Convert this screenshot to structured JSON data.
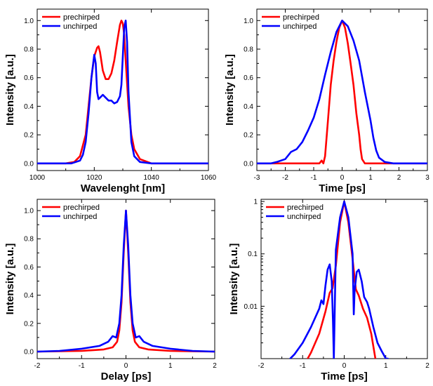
{
  "colors": {
    "prechirped": "#ff0000",
    "unchirped": "#0000ff"
  },
  "chart_data": [
    {
      "id": "spectrum",
      "type": "line",
      "xlabel": "Wavelenght [nm]",
      "ylabel": "Intensity [a.u.]",
      "xlim": [
        1000,
        1060
      ],
      "ylim": [
        -0.05,
        1.08
      ],
      "xticks": [
        1000,
        1020,
        1040,
        1060
      ],
      "xtick_labels": [
        "1000",
        "1020",
        "1040",
        "1060"
      ],
      "yticks": [
        0,
        0.2,
        0.4,
        0.6,
        0.8,
        1
      ],
      "ytick_labels": [
        "0.0",
        "0.2",
        "0.4",
        "0.6",
        "0.8",
        "1.0"
      ],
      "yscale": "linear",
      "legend_position": "top-left",
      "series": [
        {
          "name": "prechirped",
          "color": "#ff0000",
          "x": [
            1000,
            1010,
            1013,
            1015,
            1017,
            1018,
            1019,
            1020,
            1021,
            1021.5,
            1022,
            1023,
            1024,
            1025,
            1026,
            1027,
            1028,
            1029,
            1029.5,
            1030,
            1030.5,
            1031,
            1032,
            1033,
            1034,
            1036,
            1040,
            1060
          ],
          "y": [
            0,
            0,
            0.01,
            0.05,
            0.2,
            0.4,
            0.6,
            0.75,
            0.81,
            0.82,
            0.78,
            0.65,
            0.59,
            0.59,
            0.63,
            0.72,
            0.85,
            0.97,
            1.0,
            0.98,
            0.9,
            0.72,
            0.4,
            0.2,
            0.1,
            0.03,
            0,
            0
          ]
        },
        {
          "name": "unchirped",
          "color": "#0000ff",
          "x": [
            1000,
            1012,
            1015,
            1016,
            1017,
            1018,
            1019,
            1020,
            1020.5,
            1021,
            1021.5,
            1022,
            1023,
            1024,
            1025,
            1026,
            1027,
            1028,
            1029,
            1029.5,
            1030,
            1030.5,
            1031,
            1031.5,
            1032,
            1033,
            1034,
            1036,
            1040,
            1060
          ],
          "y": [
            0,
            0,
            0.02,
            0.06,
            0.15,
            0.35,
            0.6,
            0.76,
            0.7,
            0.5,
            0.45,
            0.46,
            0.48,
            0.46,
            0.44,
            0.44,
            0.42,
            0.43,
            0.47,
            0.55,
            0.75,
            0.95,
            1.0,
            0.85,
            0.5,
            0.15,
            0.05,
            0.01,
            0,
            0
          ]
        }
      ]
    },
    {
      "id": "pulse-time",
      "type": "line",
      "xlabel": "Time [ps]",
      "ylabel": "Intensity [a.u.]",
      "xlim": [
        -3,
        3
      ],
      "ylim": [
        -0.05,
        1.08
      ],
      "xticks": [
        -3,
        -2,
        -1,
        0,
        1,
        2,
        3
      ],
      "xtick_labels": [
        "-3",
        "-2",
        "-1",
        "0",
        "1",
        "2",
        "3"
      ],
      "yticks": [
        0,
        0.2,
        0.4,
        0.6,
        0.8,
        1
      ],
      "ytick_labels": [
        "0.0",
        "0.2",
        "0.4",
        "0.6",
        "0.8",
        "1.0"
      ],
      "yscale": "linear",
      "legend_position": "top-left",
      "series": [
        {
          "name": "prechirped",
          "color": "#ff0000",
          "x": [
            -3,
            -1,
            -0.8,
            -0.72,
            -0.66,
            -0.6,
            -0.5,
            -0.4,
            -0.3,
            -0.2,
            -0.1,
            0,
            0.1,
            0.2,
            0.3,
            0.4,
            0.5,
            0.6,
            0.65,
            0.7,
            0.8,
            1,
            3
          ],
          "y": [
            0,
            0,
            0,
            0.02,
            0,
            0.05,
            0.3,
            0.55,
            0.72,
            0.85,
            0.95,
            1.0,
            0.95,
            0.84,
            0.7,
            0.55,
            0.35,
            0.2,
            0.1,
            0.03,
            0,
            0,
            0
          ]
        },
        {
          "name": "unchirped",
          "color": "#0000ff",
          "x": [
            -3,
            -2.5,
            -2.3,
            -2.0,
            -1.8,
            -1.6,
            -1.4,
            -1.2,
            -1.0,
            -0.8,
            -0.6,
            -0.4,
            -0.2,
            0,
            0.2,
            0.4,
            0.6,
            0.8,
            1.0,
            1.1,
            1.2,
            1.3,
            1.5,
            1.8,
            3
          ],
          "y": [
            0,
            0,
            0.01,
            0.03,
            0.08,
            0.1,
            0.15,
            0.23,
            0.32,
            0.45,
            0.62,
            0.78,
            0.92,
            1.0,
            0.96,
            0.86,
            0.72,
            0.5,
            0.3,
            0.18,
            0.09,
            0.04,
            0.01,
            0,
            0
          ]
        }
      ]
    },
    {
      "id": "autocorrelation",
      "type": "line",
      "xlabel": "Delay [ps]",
      "ylabel": "Intensity [a.u.]",
      "xlim": [
        -2,
        2
      ],
      "ylim": [
        -0.05,
        1.08
      ],
      "xticks": [
        -2,
        -1,
        0,
        1,
        2
      ],
      "xtick_labels": [
        "-2",
        "-1",
        "0",
        "1",
        "2"
      ],
      "yticks": [
        0,
        0.2,
        0.4,
        0.6,
        0.8,
        1
      ],
      "ytick_labels": [
        "0.0",
        "0.2",
        "0.4",
        "0.6",
        "0.8",
        "1.0"
      ],
      "yscale": "linear",
      "legend_position": "top-left",
      "series": [
        {
          "name": "prechirped",
          "color": "#ff0000",
          "x": [
            -2,
            -1,
            -0.5,
            -0.3,
            -0.2,
            -0.15,
            -0.1,
            -0.05,
            0,
            0.05,
            0.1,
            0.15,
            0.2,
            0.3,
            0.5,
            1,
            2
          ],
          "y": [
            0,
            0.005,
            0.015,
            0.03,
            0.07,
            0.15,
            0.35,
            0.7,
            1.0,
            0.7,
            0.35,
            0.15,
            0.07,
            0.03,
            0.015,
            0.005,
            0
          ]
        },
        {
          "name": "unchirped",
          "color": "#0000ff",
          "x": [
            -2,
            -1.5,
            -1,
            -0.6,
            -0.4,
            -0.3,
            -0.22,
            -0.15,
            -0.1,
            -0.05,
            0,
            0.05,
            0.1,
            0.15,
            0.22,
            0.3,
            0.4,
            0.6,
            1,
            1.5,
            2
          ],
          "y": [
            0,
            0.005,
            0.02,
            0.04,
            0.07,
            0.11,
            0.1,
            0.2,
            0.4,
            0.75,
            1.0,
            0.75,
            0.4,
            0.2,
            0.1,
            0.11,
            0.07,
            0.04,
            0.02,
            0.005,
            0
          ]
        }
      ]
    },
    {
      "id": "pulse-time-log",
      "type": "line",
      "xlabel": "Time [ps]",
      "ylabel": "Intensity [a.u.]",
      "xlim": [
        -2,
        2
      ],
      "ylim": [
        0.001,
        1.1
      ],
      "xticks": [
        -2,
        -1,
        0,
        1,
        2
      ],
      "xtick_labels": [
        "-2",
        "-1",
        "0",
        "1",
        "2"
      ],
      "yticks": [
        0.01,
        0.1,
        1
      ],
      "ytick_labels": [
        "0.01",
        "0.1",
        "1"
      ],
      "yscale": "log",
      "legend_position": "top-left",
      "series": [
        {
          "name": "prechirped",
          "color": "#ff0000",
          "x": [
            -0.88,
            -0.8,
            -0.6,
            -0.45,
            -0.35,
            -0.28,
            -0.2,
            -0.1,
            0,
            0.1,
            0.2,
            0.28,
            0.35,
            0.45,
            0.55,
            0.65,
            0.75
          ],
          "y": [
            0.001,
            0.0013,
            0.003,
            0.008,
            0.018,
            0.022,
            0.06,
            0.4,
            1.0,
            0.4,
            0.08,
            0.021,
            0.016,
            0.009,
            0.006,
            0.003,
            0.001
          ]
        },
        {
          "name": "unchirped",
          "color": "#0000ff",
          "x": [
            -1.3,
            -1.2,
            -1.0,
            -0.8,
            -0.6,
            -0.55,
            -0.5,
            -0.45,
            -0.4,
            -0.35,
            -0.3,
            -0.27,
            -0.25,
            -0.22,
            -0.2,
            -0.1,
            0,
            0.1,
            0.2,
            0.23,
            0.25,
            0.3,
            0.35,
            0.42,
            0.48,
            0.55,
            0.6,
            0.7,
            0.8,
            0.9,
            1.0,
            1.05
          ],
          "y": [
            0.001,
            0.0012,
            0.002,
            0.004,
            0.009,
            0.013,
            0.011,
            0.025,
            0.05,
            0.063,
            0.03,
            0.005,
            0.001,
            0.02,
            0.12,
            0.5,
            1.0,
            0.5,
            0.1,
            0.007,
            0.02,
            0.045,
            0.05,
            0.03,
            0.015,
            0.012,
            0.009,
            0.004,
            0.002,
            0.0014,
            0.001,
            0.001
          ]
        }
      ]
    }
  ]
}
